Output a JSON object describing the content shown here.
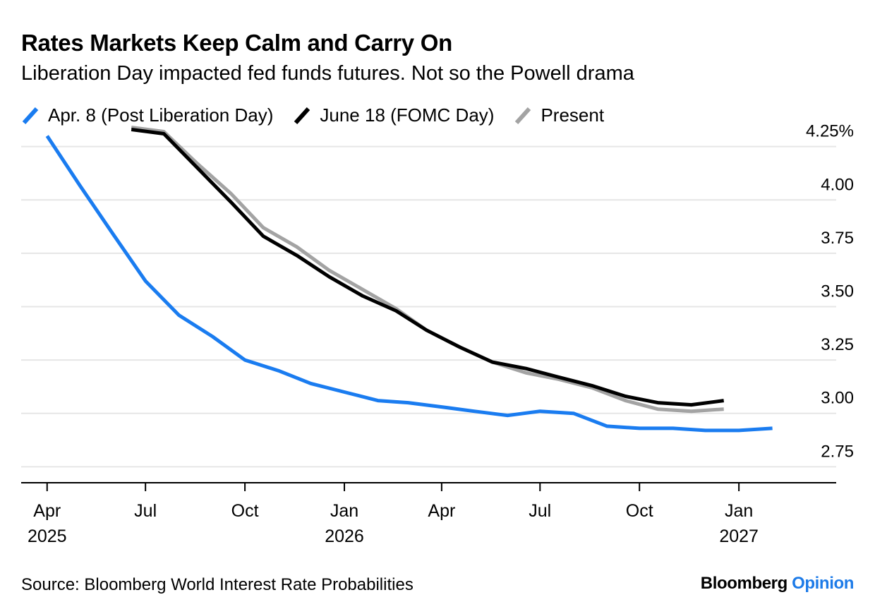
{
  "colors": {
    "series_blue": "#1a7cf0",
    "series_black": "#000000",
    "series_grey": "#a3a3a3",
    "grid": "#e6e6e6",
    "brand_accent": "#1d7be8"
  },
  "chart_data": {
    "type": "line",
    "title": "Rates Markets Keep Calm and Carry On",
    "subtitle": "Liberation Day impacted fed funds futures. Not so the Powell drama",
    "y_unit": "%",
    "ylim": [
      2.675,
      4.325
    ],
    "y_ticks": [
      {
        "value": 4.25,
        "label": "4.25%"
      },
      {
        "value": 4.0,
        "label": "4.00"
      },
      {
        "value": 3.75,
        "label": "3.75"
      },
      {
        "value": 3.5,
        "label": "3.50"
      },
      {
        "value": 3.25,
        "label": "3.25"
      },
      {
        "value": 3.0,
        "label": "3.00"
      },
      {
        "value": 2.75,
        "label": "2.75"
      }
    ],
    "x_ticks": [
      {
        "date": "2025-04-01",
        "label": "Apr",
        "sublabel": "2025"
      },
      {
        "date": "2025-07-01",
        "label": "Jul",
        "sublabel": ""
      },
      {
        "date": "2025-10-01",
        "label": "Oct",
        "sublabel": ""
      },
      {
        "date": "2026-01-01",
        "label": "Jan",
        "sublabel": "2026"
      },
      {
        "date": "2026-04-01",
        "label": "Apr",
        "sublabel": ""
      },
      {
        "date": "2026-07-01",
        "label": "Jul",
        "sublabel": ""
      },
      {
        "date": "2026-10-01",
        "label": "Oct",
        "sublabel": ""
      },
      {
        "date": "2027-01-01",
        "label": "Jan",
        "sublabel": "2027"
      }
    ],
    "xlim": [
      "2025-03-08",
      "2027-04-01"
    ],
    "grid": true,
    "legend_position": "top-left",
    "series": [
      {
        "name": "Apr. 8 (Post Liberation Day)",
        "color": "#1a7cf0",
        "points": [
          [
            "2025-04-01",
            4.3
          ],
          [
            "2025-05-01",
            4.07
          ],
          [
            "2025-06-01",
            3.84
          ],
          [
            "2025-07-01",
            3.62
          ],
          [
            "2025-08-01",
            3.46
          ],
          [
            "2025-09-01",
            3.36
          ],
          [
            "2025-10-01",
            3.25
          ],
          [
            "2025-11-01",
            3.2
          ],
          [
            "2025-12-01",
            3.14
          ],
          [
            "2026-01-01",
            3.1
          ],
          [
            "2026-02-01",
            3.06
          ],
          [
            "2026-03-01",
            3.05
          ],
          [
            "2026-04-01",
            3.03
          ],
          [
            "2026-05-01",
            3.01
          ],
          [
            "2026-06-01",
            2.99
          ],
          [
            "2026-07-01",
            3.01
          ],
          [
            "2026-08-01",
            3.0
          ],
          [
            "2026-09-01",
            2.94
          ],
          [
            "2026-10-01",
            2.93
          ],
          [
            "2026-11-01",
            2.93
          ],
          [
            "2026-12-01",
            2.92
          ],
          [
            "2027-01-01",
            2.92
          ],
          [
            "2027-02-01",
            2.93
          ]
        ]
      },
      {
        "name": "June 18 (FOMC Day)",
        "color": "#000000",
        "points": [
          [
            "2025-06-18",
            4.33
          ],
          [
            "2025-07-18",
            4.31
          ],
          [
            "2025-08-18",
            4.15
          ],
          [
            "2025-09-18",
            3.99
          ],
          [
            "2025-10-18",
            3.83
          ],
          [
            "2025-11-18",
            3.74
          ],
          [
            "2025-12-18",
            3.64
          ],
          [
            "2026-01-18",
            3.55
          ],
          [
            "2026-02-18",
            3.48
          ],
          [
            "2026-03-18",
            3.39
          ],
          [
            "2026-04-18",
            3.31
          ],
          [
            "2026-05-18",
            3.24
          ],
          [
            "2026-06-18",
            3.21
          ],
          [
            "2026-07-18",
            3.17
          ],
          [
            "2026-08-18",
            3.13
          ],
          [
            "2026-09-18",
            3.08
          ],
          [
            "2026-10-18",
            3.05
          ],
          [
            "2026-11-18",
            3.04
          ],
          [
            "2026-12-18",
            3.06
          ]
        ]
      },
      {
        "name": "Present",
        "color": "#a3a3a3",
        "points": [
          [
            "2025-06-18",
            4.34
          ],
          [
            "2025-07-18",
            4.32
          ],
          [
            "2025-08-18",
            4.17
          ],
          [
            "2025-09-18",
            4.03
          ],
          [
            "2025-10-18",
            3.87
          ],
          [
            "2025-11-18",
            3.78
          ],
          [
            "2025-12-18",
            3.67
          ],
          [
            "2026-01-18",
            3.58
          ],
          [
            "2026-02-18",
            3.49
          ],
          [
            "2026-03-18",
            3.39
          ],
          [
            "2026-04-18",
            3.31
          ],
          [
            "2026-05-18",
            3.24
          ],
          [
            "2026-06-18",
            3.19
          ],
          [
            "2026-07-18",
            3.16
          ],
          [
            "2026-08-18",
            3.12
          ],
          [
            "2026-09-18",
            3.06
          ],
          [
            "2026-10-18",
            3.02
          ],
          [
            "2026-11-18",
            3.01
          ],
          [
            "2026-12-18",
            3.02
          ]
        ]
      }
    ]
  },
  "footer": {
    "source": "Source: Bloomberg World Interest Rate Probabilities",
    "brand": "Bloomberg",
    "brand_accent": "Opinion"
  }
}
